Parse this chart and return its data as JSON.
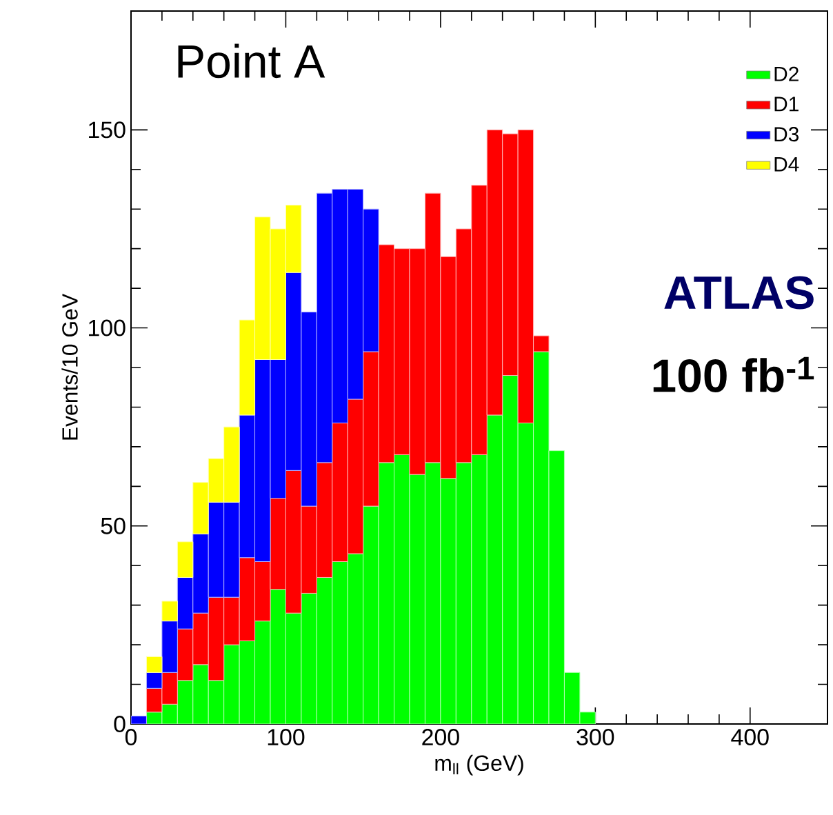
{
  "chart_data": {
    "type": "bar",
    "stacked": true,
    "xlabel": "m$_{ll}$ (GeV)",
    "ylabel": "Events/10 GeV",
    "annotations": [
      "Point A",
      "ATLAS",
      "100 fb$^{-1}$"
    ],
    "x": [
      5,
      15,
      25,
      35,
      45,
      55,
      65,
      75,
      85,
      95,
      105,
      115,
      125,
      135,
      145,
      155,
      165,
      175,
      185,
      195,
      205,
      215,
      225,
      235,
      245,
      255,
      265,
      275,
      285,
      295
    ],
    "series": [
      {
        "name": "D2",
        "color": "#00ff00",
        "values": [
          0,
          3,
          5,
          11,
          15,
          11,
          20,
          21,
          26,
          34,
          28,
          33,
          37,
          41,
          43,
          55,
          66,
          68,
          63,
          66,
          62,
          66,
          68,
          78,
          88,
          76,
          94,
          69,
          13,
          3
        ]
      },
      {
        "name": "D1",
        "color": "#ff0000",
        "values": [
          0,
          6,
          8,
          13,
          13,
          21,
          12,
          21,
          15,
          23,
          36,
          22,
          29,
          35,
          39,
          39,
          55,
          52,
          57,
          68,
          56,
          59,
          68,
          72,
          61,
          74,
          4,
          0,
          0,
          0
        ]
      },
      {
        "name": "D3",
        "color": "#0000ff",
        "values": [
          2,
          4,
          13,
          13,
          20,
          24,
          24,
          36,
          51,
          35,
          50,
          49,
          68,
          59,
          53,
          36,
          0,
          0,
          0,
          0,
          0,
          0,
          0,
          0,
          0,
          0,
          0,
          0,
          0,
          0
        ]
      },
      {
        "name": "D4",
        "color": "#ffff00",
        "values": [
          0,
          4,
          5,
          9,
          13,
          11,
          19,
          24,
          36,
          33,
          17,
          0,
          0,
          0,
          0,
          0,
          0,
          0,
          0,
          0,
          0,
          0,
          0,
          0,
          0,
          0,
          0,
          0,
          0,
          0
        ]
      }
    ],
    "xlim": [
      0,
      450
    ],
    "ylim": [
      0,
      180
    ],
    "xticks": [
      0,
      100,
      200,
      300,
      400
    ],
    "yticks": [
      0,
      50,
      100,
      150
    ],
    "legend": "top right"
  }
}
